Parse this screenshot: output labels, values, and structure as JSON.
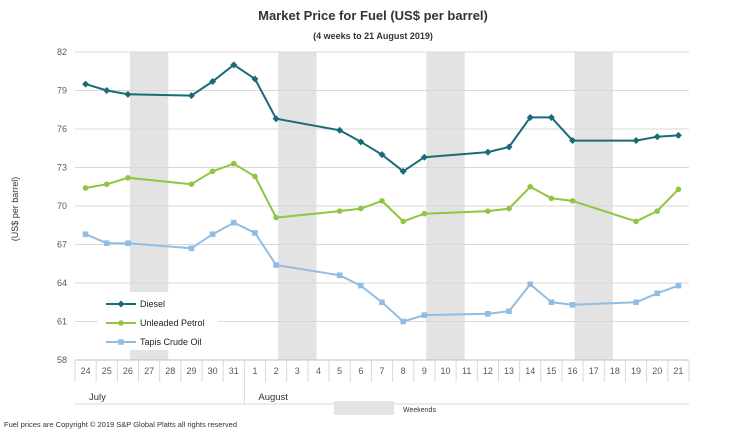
{
  "chart_data": {
    "type": "line",
    "title": "Market Price for Fuel (US$ per barrel)",
    "subtitle": "(4 weeks to 21 August 2019)",
    "ylabel": "(US$ per barrel)",
    "ylim": [
      58,
      82
    ],
    "yticks": [
      58,
      61,
      64,
      67,
      70,
      73,
      76,
      79,
      82
    ],
    "categories": [
      "24",
      "25",
      "26",
      "27",
      "28",
      "29",
      "30",
      "31",
      "1",
      "2",
      "3",
      "4",
      "5",
      "6",
      "7",
      "8",
      "9",
      "10",
      "11",
      "12",
      "13",
      "14",
      "15",
      "16",
      "17",
      "18",
      "19",
      "20",
      "21"
    ],
    "month_labels": [
      {
        "label": "July",
        "start_index": 0
      },
      {
        "label": "August",
        "start_index": 8
      }
    ],
    "weekend_ranges": [
      [
        2,
        4
      ],
      [
        9,
        11
      ],
      [
        16,
        18
      ],
      [
        23,
        25
      ]
    ],
    "weekend_label": "Weekends",
    "series": [
      {
        "name": "Diesel",
        "color": "#1a6b78",
        "marker": "diamond",
        "values": [
          79.5,
          79.0,
          78.7,
          null,
          null,
          78.6,
          79.7,
          81.0,
          79.9,
          76.8,
          null,
          null,
          75.9,
          75.0,
          74.0,
          72.7,
          73.8,
          null,
          null,
          74.2,
          74.6,
          76.9,
          76.9,
          75.1,
          null,
          null,
          75.1,
          75.4,
          75.5
        ]
      },
      {
        "name": "Unleaded Petrol",
        "color": "#8dc63f",
        "marker": "circle",
        "values": [
          71.4,
          71.7,
          72.2,
          null,
          null,
          71.7,
          72.7,
          73.3,
          72.3,
          69.1,
          null,
          null,
          69.6,
          69.8,
          70.4,
          68.8,
          69.4,
          null,
          null,
          69.6,
          69.8,
          71.5,
          70.6,
          70.4,
          null,
          null,
          68.8,
          69.6,
          71.3
        ]
      },
      {
        "name": "Tapis Crude Oil",
        "color": "#92bde3",
        "marker": "square",
        "values": [
          67.8,
          67.1,
          67.1,
          null,
          null,
          66.7,
          67.8,
          68.7,
          67.9,
          65.4,
          null,
          null,
          64.6,
          63.8,
          62.5,
          61.0,
          61.5,
          null,
          null,
          61.6,
          61.8,
          63.9,
          62.5,
          62.3,
          null,
          null,
          62.5,
          63.2,
          63.8
        ]
      }
    ],
    "legend_position": "bottom-left",
    "grid": true
  },
  "footer": {
    "copyright": "Fuel prices are Copyright © 2019 S&P Global Platts all rights reserved"
  }
}
